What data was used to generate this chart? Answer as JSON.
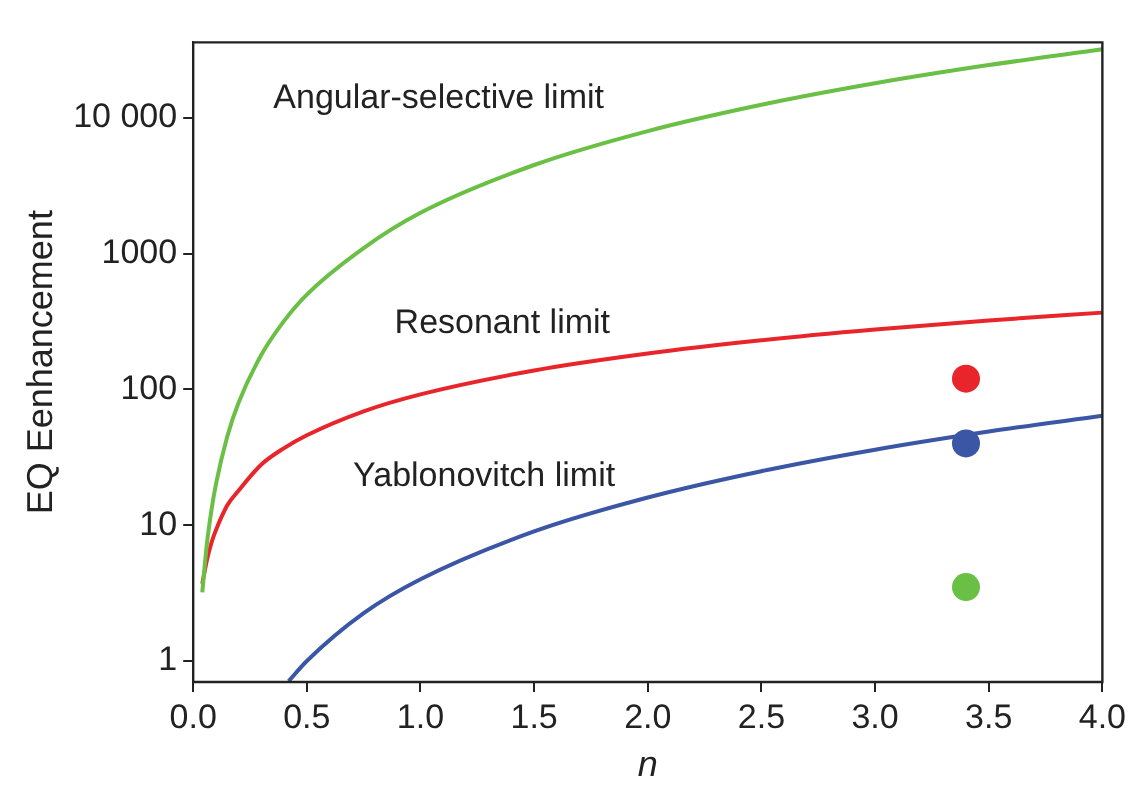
{
  "chart_data": {
    "type": "line",
    "xlabel": "n",
    "ylabel": "EQ Eenhancement",
    "log": "y",
    "grid": false,
    "legend": false,
    "marker": "none",
    "line_style": "solid",
    "xlim": [
      0,
      4
    ],
    "xticks": [
      {
        "value": 0,
        "label": "0.0"
      },
      0.5,
      {
        "value": 1,
        "label": "1.0"
      },
      1.5,
      {
        "value": 2,
        "label": "2.0"
      },
      2.5,
      {
        "value": 3,
        "label": "3.0"
      },
      3.5,
      {
        "value": 4,
        "label": "4.0"
      }
    ],
    "ylim": [
      0.7,
      36000
    ],
    "yticks": [
      1,
      10,
      100,
      1000,
      {
        "value": 10000,
        "label": "10 000"
      }
    ],
    "series": [
      {
        "name": "Angular-selective limit",
        "color": "#6abf45",
        "x": [
          0.04,
          0.06,
          0.08,
          0.1,
          0.15,
          0.2,
          0.3,
          0.4,
          0.5,
          0.75,
          1,
          1.5,
          2,
          2.5,
          3,
          3.5,
          4
        ],
        "values": [
          3.2,
          7.2,
          12.8,
          20,
          45,
          80,
          180,
          320,
          500,
          1100,
          2000,
          4500,
          8000,
          12500,
          18000,
          24500,
          32000
        ]
      },
      {
        "name": "Resonant limit",
        "color": "#e8252a",
        "x": [
          0.04,
          0.06,
          0.08,
          0.1,
          0.15,
          0.2,
          0.3,
          0.4,
          0.5,
          0.75,
          1,
          1.5,
          2,
          2.5,
          3,
          3.5,
          4
        ],
        "values": [
          3.7,
          5.5,
          7.4,
          9.2,
          14,
          18,
          28,
          37,
          46,
          69,
          92,
          138,
          184,
          230,
          276,
          322,
          368
        ]
      },
      {
        "name": "Yablonovitch limit",
        "color": "#3a56a5",
        "x": [
          0.42,
          0.5,
          0.75,
          1,
          1.5,
          2,
          2.5,
          3,
          3.5,
          4
        ],
        "values": [
          0.71,
          1,
          2.25,
          4,
          9,
          16,
          25,
          36,
          49,
          64
        ]
      },
      {
        "type": "scatter",
        "marker": "circle",
        "color": "#e8252a",
        "x": [
          3.4
        ],
        "values": [
          120
        ]
      },
      {
        "type": "scatter",
        "marker": "circle",
        "color": "#3a56a5",
        "x": [
          3.4
        ],
        "values": [
          40
        ]
      },
      {
        "type": "scatter",
        "marker": "circle",
        "color": "#6abf45",
        "x": [
          3.4
        ],
        "values": [
          3.5
        ]
      }
    ]
  }
}
